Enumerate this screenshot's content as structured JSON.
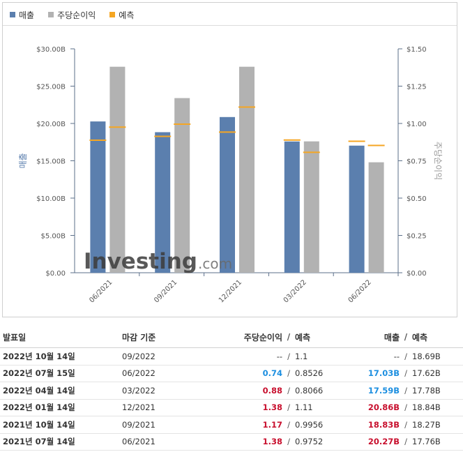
{
  "legend": [
    {
      "label": "매출",
      "color": "#5b7fae"
    },
    {
      "label": "주당순이익",
      "color": "#b2b2b2"
    },
    {
      "label": "예측",
      "color": "#f5a623"
    }
  ],
  "watermark": {
    "brand": "Investing",
    "suffix": ".com"
  },
  "chart_data": {
    "type": "bar",
    "categories": [
      "06/2021",
      "09/2021",
      "12/2021",
      "03/2022",
      "06/2022"
    ],
    "series": [
      {
        "name": "매출",
        "axis": "left",
        "color": "#5b7fae",
        "values": [
          20.27,
          18.83,
          20.86,
          17.59,
          17.03
        ]
      },
      {
        "name": "주당순이익",
        "axis": "right",
        "color": "#b2b2b2",
        "values": [
          1.38,
          1.17,
          1.38,
          0.88,
          0.74
        ]
      }
    ],
    "forecasts": {
      "name": "예측",
      "color": "#f5a623",
      "revenue": [
        17.76,
        18.27,
        18.84,
        17.78,
        17.62
      ],
      "eps": [
        0.9752,
        0.9956,
        1.11,
        0.8066,
        0.8526
      ]
    },
    "ylabel_left": "매출",
    "ylabel_right": "주당순이익",
    "ylim_left": [
      0,
      30
    ],
    "ylim_right": [
      0,
      1.5
    ],
    "yticks_left": [
      "$0.00",
      "$5.00B",
      "$10.00B",
      "$15.00B",
      "$20.00B",
      "$25.00B",
      "$30.00B"
    ],
    "yticks_right": [
      "$0.00",
      "$0.25",
      "$0.50",
      "$0.75",
      "$1.00",
      "$1.25",
      "$1.50"
    ],
    "grid": false,
    "legend_position": "top-left"
  },
  "table": {
    "headers": {
      "date": "발표일",
      "period": "마감 기준",
      "eps": "주당순이익",
      "forecast": "예측",
      "revenue": "매출",
      "forecast2": "예측"
    },
    "separator": "/",
    "rows": [
      {
        "date": "2022년 10월 14일",
        "period": "09/2022",
        "eps": "--",
        "eps_state": "none",
        "eps_fc": "1.1",
        "rev": "--",
        "rev_state": "none",
        "rev_fc": "18.69B"
      },
      {
        "date": "2022년 07월 15일",
        "period": "06/2022",
        "eps": "0.74",
        "eps_state": "blue",
        "eps_fc": "0.8526",
        "rev": "17.03B",
        "rev_state": "blue",
        "rev_fc": "17.62B"
      },
      {
        "date": "2022년 04월 14일",
        "period": "03/2022",
        "eps": "0.88",
        "eps_state": "red",
        "eps_fc": "0.8066",
        "rev": "17.59B",
        "rev_state": "blue",
        "rev_fc": "17.78B"
      },
      {
        "date": "2022년 01월 14일",
        "period": "12/2021",
        "eps": "1.38",
        "eps_state": "red",
        "eps_fc": "1.11",
        "rev": "20.86B",
        "rev_state": "red",
        "rev_fc": "18.84B"
      },
      {
        "date": "2021년 10월 14일",
        "period": "09/2021",
        "eps": "1.17",
        "eps_state": "red",
        "eps_fc": "0.9956",
        "rev": "18.83B",
        "rev_state": "red",
        "rev_fc": "18.27B"
      },
      {
        "date": "2021년 07월 14일",
        "period": "06/2021",
        "eps": "1.38",
        "eps_state": "red",
        "eps_fc": "0.9752",
        "rev": "20.27B",
        "rev_state": "red",
        "rev_fc": "17.76B"
      }
    ]
  }
}
